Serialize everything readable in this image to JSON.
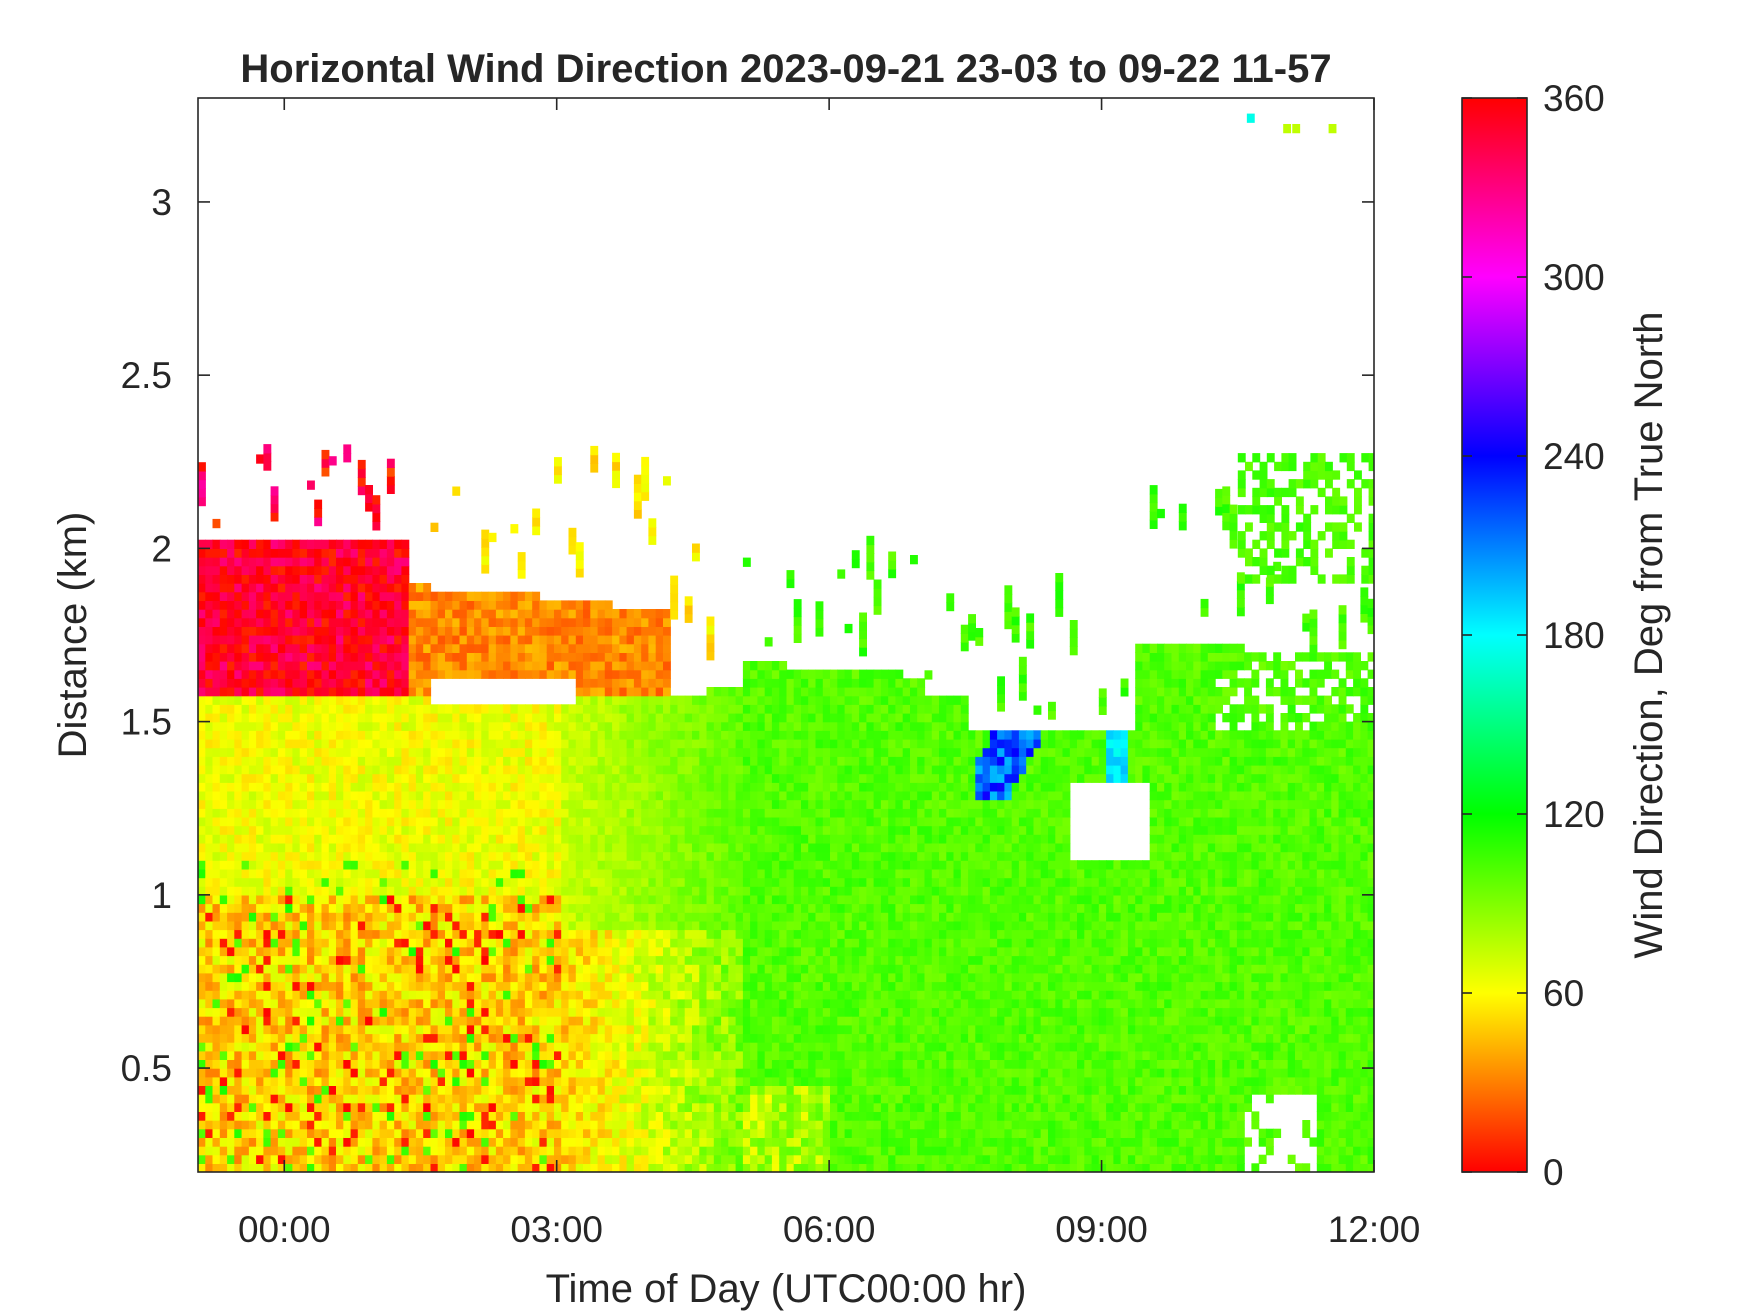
{
  "chart_data": {
    "type": "heatmap",
    "title": "Horizontal Wind Direction 2023-09-21 23-03 to 09-22 11-57",
    "xlabel": "Time of Day (UTC00:00 hr)",
    "ylabel": "Distance (km)",
    "colorbar_label": "Wind Direction, Deg from True North",
    "x_ticks": [
      "00:00",
      "03:00",
      "06:00",
      "09:00",
      "12:00"
    ],
    "x_tick_values": [
      0,
      3,
      6,
      9,
      12
    ],
    "y_ticks": [
      "0.5",
      "1",
      "1.5",
      "2",
      "2.5",
      "3"
    ],
    "y_tick_values": [
      0.5,
      1,
      1.5,
      2,
      2.5,
      3
    ],
    "xlim": [
      "23:03",
      "12:00"
    ],
    "xlim_hours": [
      -0.95,
      12.0
    ],
    "ylim": [
      0.2,
      3.3
    ],
    "colorbar_ticks": [
      "0",
      "60",
      "120",
      "180",
      "240",
      "300",
      "360"
    ],
    "colorbar_tick_values": [
      0,
      60,
      120,
      180,
      240,
      300,
      360
    ],
    "clim": [
      0,
      360
    ],
    "colormap": "hsv",
    "grid": false,
    "missing_data_color": "#ffffff",
    "regions": [
      {
        "description": "Surface layer before 05:00, mixed orange/yellow",
        "x_range": [
          -0.95,
          5.0
        ],
        "y_range": [
          0.2,
          1.0
        ],
        "direction_deg": [
          15,
          70
        ]
      },
      {
        "description": "Mid layer before 03:00",
        "x_range": [
          -0.95,
          3.0
        ],
        "y_range": [
          1.0,
          1.55
        ],
        "direction_deg": [
          50,
          75
        ]
      },
      {
        "description": "Transition zone",
        "x_range": [
          3.0,
          5.0
        ],
        "y_range": [
          0.9,
          1.6
        ],
        "direction_deg": [
          65,
          90
        ]
      },
      {
        "description": "Upper layer pink/red",
        "x_range": [
          -0.95,
          1.3
        ],
        "y_range": [
          1.55,
          2.0
        ],
        "direction_deg": [
          330,
          360
        ]
      },
      {
        "description": "Upper layer orange",
        "x_range": [
          1.3,
          4.2
        ],
        "y_range": [
          1.55,
          1.9
        ],
        "direction_deg": [
          20,
          45
        ]
      },
      {
        "description": "Broad easterly flow after 05:00",
        "x_range": [
          5.0,
          12.0
        ],
        "y_range": [
          0.2,
          1.7
        ],
        "direction_deg": [
          90,
          115
        ]
      },
      {
        "description": "Blue/cyan streaks",
        "x_range": [
          7.6,
          9.3
        ],
        "y_range": [
          1.25,
          1.8
        ],
        "direction_deg": [
          180,
          245
        ]
      },
      {
        "description": "Green cloud patches aloft",
        "x_range": [
          10.5,
          12.0
        ],
        "y_range": [
          1.7,
          2.25
        ],
        "direction_deg": [
          95,
          110
        ]
      }
    ]
  }
}
